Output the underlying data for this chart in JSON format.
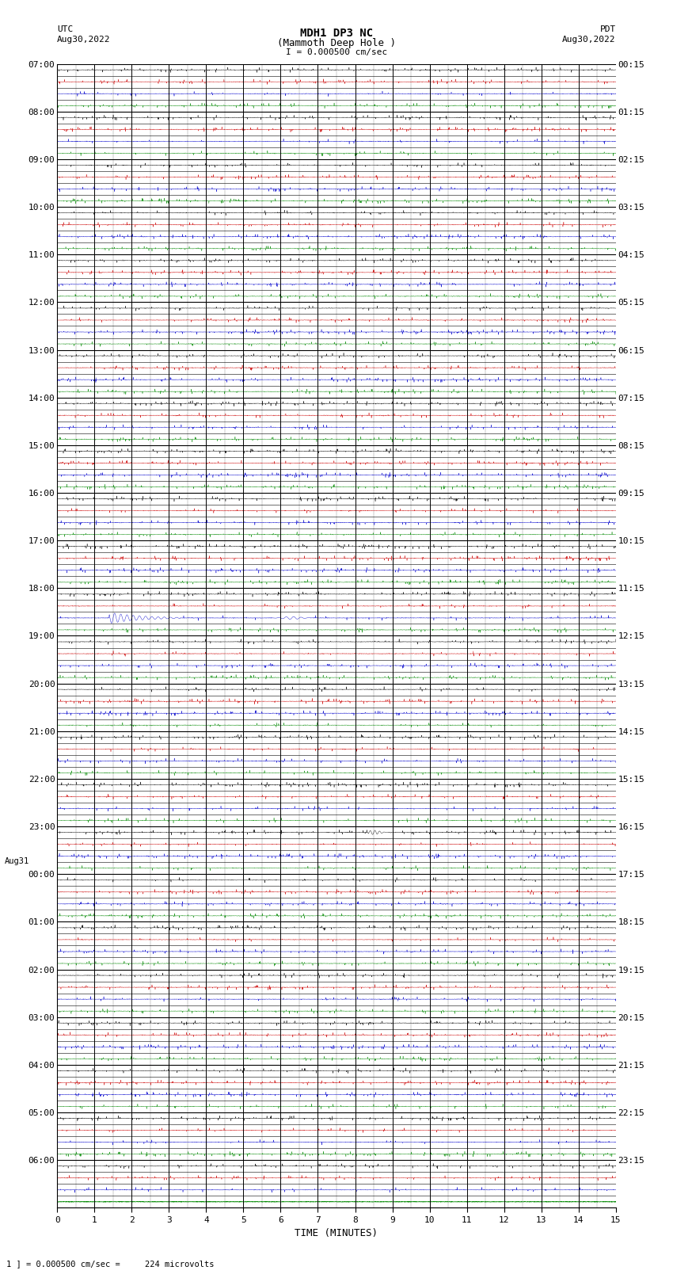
{
  "title_line1": "MDH1 DP3 NC",
  "title_line2": "(Mammoth Deep Hole )",
  "scale_label": "I = 0.000500 cm/sec",
  "left_label_top": "UTC",
  "left_label_date": "Aug30,2022",
  "right_label_top": "PDT",
  "right_label_date": "Aug30,2022",
  "bottom_xlabel": "TIME (MINUTES)",
  "bottom_note": "1 ] = 0.000500 cm/sec =     224 microvolts",
  "num_rows": 24,
  "utc_labels": [
    "07:00",
    "08:00",
    "09:00",
    "10:00",
    "11:00",
    "12:00",
    "13:00",
    "14:00",
    "15:00",
    "16:00",
    "17:00",
    "18:00",
    "19:00",
    "20:00",
    "21:00",
    "22:00",
    "23:00",
    "Aug31\n00:00",
    "01:00",
    "02:00",
    "03:00",
    "04:00",
    "05:00",
    "06:00"
  ],
  "pdt_labels": [
    "00:15",
    "01:15",
    "02:15",
    "03:15",
    "04:15",
    "05:15",
    "06:15",
    "07:15",
    "08:15",
    "09:15",
    "10:15",
    "11:15",
    "12:15",
    "13:15",
    "14:15",
    "15:15",
    "16:15",
    "17:15",
    "18:15",
    "19:15",
    "20:15",
    "21:15",
    "22:15",
    "23:15"
  ],
  "x_ticks": [
    0,
    1,
    2,
    3,
    4,
    5,
    6,
    7,
    8,
    9,
    10,
    11,
    12,
    13,
    14,
    15
  ],
  "sub_rows_per_hour": 4,
  "background_color": "#ffffff",
  "major_grid_color": "#000000",
  "minor_grid_color": "#888888",
  "line_color_black": "#000000",
  "line_color_red": "#cc0000",
  "line_color_blue": "#0000cc",
  "line_color_green": "#008800",
  "event_row": 11,
  "event_minute": 1.5,
  "event2_row": 16,
  "event2_minute": 8.5,
  "last_row_green": true,
  "fig_width": 8.5,
  "fig_height": 16.13
}
